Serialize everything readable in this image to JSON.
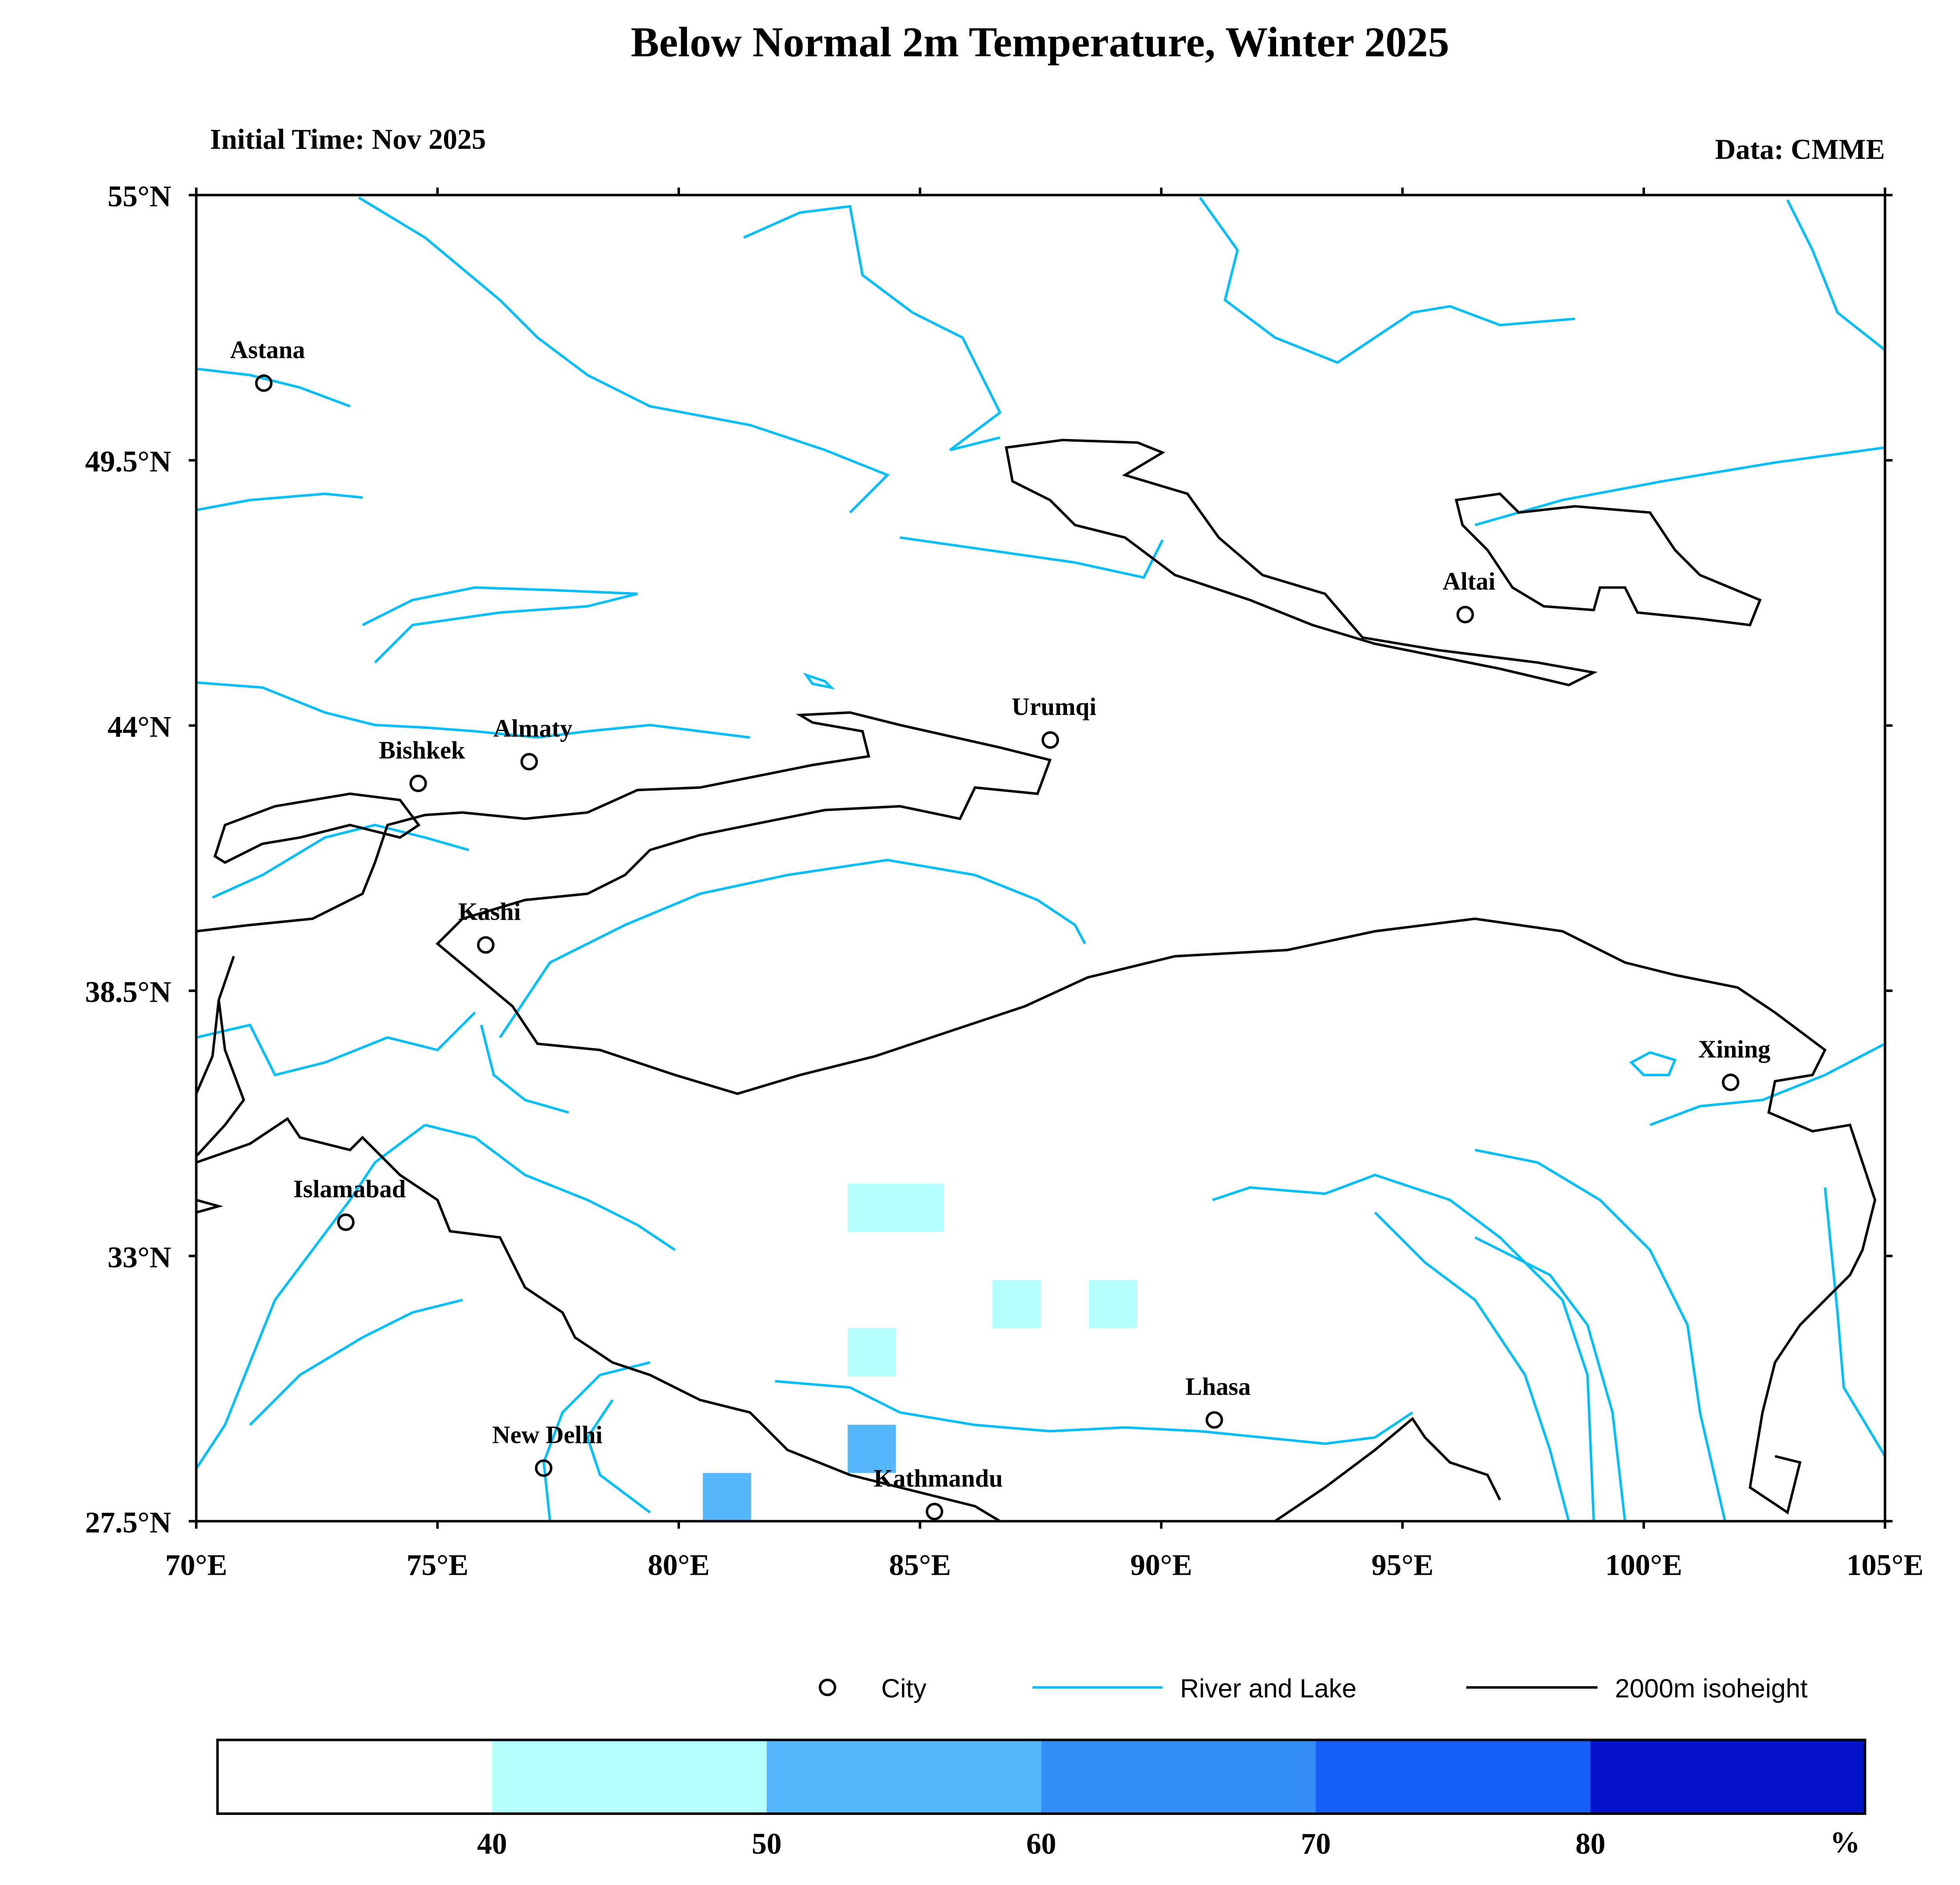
{
  "chart_data": {
    "type": "heatmap",
    "title": "Below Normal 2m Temperature, Winter 2025",
    "subtitle_left": "Initial Time: Nov 2025",
    "subtitle_right": "Data: CMME",
    "xlim": [
      70,
      105
    ],
    "ylim": [
      27.5,
      55
    ],
    "x_ticks": [
      70,
      75,
      80,
      85,
      90,
      95,
      100,
      105
    ],
    "x_tick_labels": [
      "70°E",
      "75°E",
      "80°E",
      "85°E",
      "90°E",
      "95°E",
      "100°E",
      "105°E"
    ],
    "y_ticks": [
      55,
      49.5,
      44,
      38.5,
      33,
      27.5
    ],
    "y_tick_labels": [
      "55°N",
      "49.5°N",
      "44°N",
      "38.5°N",
      "33°N",
      "27.5°N"
    ],
    "cells": [
      {
        "lon": [
          83.5,
          85.5
        ],
        "lat": [
          33.5,
          34.5
        ],
        "bin": "40-50"
      },
      {
        "lon": [
          86.5,
          87.5
        ],
        "lat": [
          31.5,
          32.5
        ],
        "bin": "40-50"
      },
      {
        "lon": [
          88.5,
          89.5
        ],
        "lat": [
          31.5,
          32.5
        ],
        "bin": "40-50"
      },
      {
        "lon": [
          83.5,
          84.5
        ],
        "lat": [
          30.5,
          31.5
        ],
        "bin": "40-50"
      },
      {
        "lon": [
          83.5,
          84.5
        ],
        "lat": [
          28.5,
          29.5
        ],
        "bin": "50-60"
      },
      {
        "lon": [
          80.5,
          81.5
        ],
        "lat": [
          27.5,
          28.5
        ],
        "bin": "50-60"
      }
    ],
    "cities": [
      {
        "name": "Astana",
        "lon": 71.4,
        "lat": 51.1
      },
      {
        "name": "Altai",
        "lon": 96.3,
        "lat": 46.3
      },
      {
        "name": "Urumqi",
        "lon": 87.7,
        "lat": 43.7
      },
      {
        "name": "Almaty",
        "lon": 76.9,
        "lat": 43.25
      },
      {
        "name": "Bishkek",
        "lon": 74.6,
        "lat": 42.8
      },
      {
        "name": "Kashi",
        "lon": 76.0,
        "lat": 39.45
      },
      {
        "name": "Xining",
        "lon": 101.8,
        "lat": 36.6
      },
      {
        "name": "Islamabad",
        "lon": 73.1,
        "lat": 33.7
      },
      {
        "name": "Lhasa",
        "lon": 91.1,
        "lat": 29.6
      },
      {
        "name": "New Delhi",
        "lon": 77.2,
        "lat": 28.6
      },
      {
        "name": "Kathmandu",
        "lon": 85.3,
        "lat": 27.7
      }
    ],
    "legend": {
      "city": "City",
      "river": "River and Lake",
      "isoheight": "2000m isoheight"
    },
    "colorbar": {
      "bins": [
        "<40",
        "40-50",
        "50-60",
        "60-70",
        "70-80",
        ">80"
      ],
      "colors": [
        "#ffffff",
        "#b4ffff",
        "#55b7fc",
        "#348ef8",
        "#185ef8",
        "#0414c8"
      ],
      "labels": [
        "40",
        "50",
        "60",
        "70",
        "80"
      ],
      "unit": "%"
    },
    "colors": {
      "river": "#00bfff",
      "contour": "#000000"
    }
  }
}
